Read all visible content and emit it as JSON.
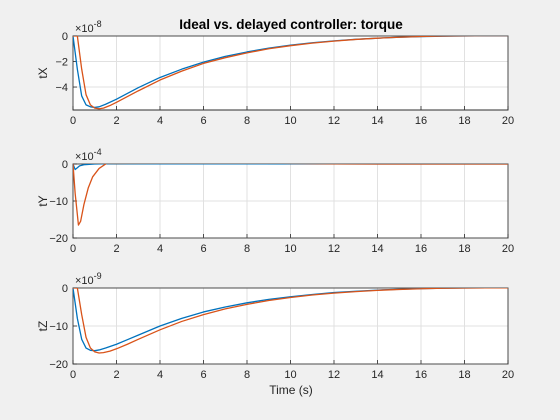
{
  "chart_data": {
    "type": "line",
    "title": "Ideal vs. delayed controller: torque",
    "xlabel": "Time (s)",
    "colors": {
      "ideal": "#0072BD",
      "delayed": "#D95319"
    },
    "subplots": [
      {
        "ylabel": "tX",
        "multiplier": "×10",
        "exponent": "-8",
        "xlim": [
          0,
          20
        ],
        "ylim": [
          -5.8,
          0
        ],
        "xticks": [
          0,
          2,
          4,
          6,
          8,
          10,
          12,
          14,
          16,
          18,
          20
        ],
        "yticks": [
          0,
          -2,
          -4
        ],
        "series": [
          {
            "color": "#0072BD",
            "x": [
              0,
              0.2,
              0.4,
              0.6,
              0.8,
              1.0,
              1.2,
              1.5,
              2,
              2.5,
              3,
              4,
              5,
              6,
              7,
              8,
              9,
              10,
              11,
              12,
              13,
              14,
              15,
              16,
              17,
              18,
              19,
              20
            ],
            "y": [
              0,
              -2.6,
              -4.7,
              -5.4,
              -5.55,
              -5.6,
              -5.55,
              -5.35,
              -4.95,
              -4.5,
              -4.05,
              -3.25,
              -2.6,
              -2.05,
              -1.6,
              -1.25,
              -0.95,
              -0.72,
              -0.53,
              -0.38,
              -0.26,
              -0.17,
              -0.1,
              -0.05,
              -0.02,
              0,
              0.02,
              0.02
            ]
          },
          {
            "color": "#D95319",
            "x": [
              0,
              0.2,
              0.4,
              0.6,
              0.8,
              1.0,
              1.2,
              1.4,
              1.7,
              2,
              2.5,
              3,
              4,
              5,
              6,
              7,
              8,
              9,
              10,
              11,
              12,
              13,
              14,
              15,
              16,
              17,
              18,
              19,
              20
            ],
            "y": [
              0,
              0,
              -2.6,
              -4.6,
              -5.4,
              -5.65,
              -5.7,
              -5.65,
              -5.45,
              -5.2,
              -4.75,
              -4.3,
              -3.45,
              -2.75,
              -2.15,
              -1.7,
              -1.32,
              -1.0,
              -0.76,
              -0.56,
              -0.4,
              -0.27,
              -0.17,
              -0.1,
              -0.04,
              0,
              0.02,
              0.03,
              0.03
            ]
          }
        ]
      },
      {
        "ylabel": "tY",
        "multiplier": "×10",
        "exponent": "-4",
        "xlim": [
          0,
          20
        ],
        "ylim": [
          -20,
          0
        ],
        "xticks": [
          0,
          2,
          4,
          6,
          8,
          10,
          12,
          14,
          16,
          18,
          20
        ],
        "yticks": [
          0,
          -10,
          -20
        ],
        "series": [
          {
            "color": "#0072BD",
            "x": [
              0,
              0.1,
              0.2,
              0.3,
              0.5,
              1,
              2,
              4,
              20
            ],
            "y": [
              0,
              -1.5,
              -1.0,
              -0.5,
              -0.2,
              0,
              0.1,
              0.05,
              0
            ]
          },
          {
            "color": "#D95319",
            "x": [
              0,
              0.1,
              0.25,
              0.35,
              0.5,
              0.7,
              0.9,
              1.2,
              1.6,
              2,
              3,
              4,
              6,
              8,
              10,
              12,
              14,
              16,
              18,
              20
            ],
            "y": [
              0,
              -8,
              -16.5,
              -15.5,
              -11,
              -6.5,
              -3.5,
              -1.2,
              0.4,
              1.0,
              1.2,
              1.0,
              0.6,
              0.3,
              0.15,
              0.05,
              0,
              0,
              0,
              0
            ]
          }
        ]
      },
      {
        "ylabel": "tZ",
        "multiplier": "×10",
        "exponent": "-9",
        "xlim": [
          0,
          20
        ],
        "ylim": [
          -20,
          0
        ],
        "xticks": [
          0,
          2,
          4,
          6,
          8,
          10,
          12,
          14,
          16,
          18,
          20
        ],
        "yticks": [
          0,
          -10,
          -20
        ],
        "series": [
          {
            "color": "#0072BD",
            "x": [
              0,
              0.2,
              0.4,
              0.6,
              0.8,
              1.0,
              1.2,
              1.5,
              2,
              2.5,
              3,
              4,
              5,
              6,
              7,
              8,
              9,
              10,
              11,
              12,
              13,
              14,
              15,
              16,
              17,
              18,
              19,
              20
            ],
            "y": [
              0,
              -8,
              -13.5,
              -15.8,
              -16.4,
              -16.5,
              -16.3,
              -15.8,
              -14.8,
              -13.6,
              -12.4,
              -10.0,
              -8.0,
              -6.3,
              -5.0,
              -3.9,
              -3.0,
              -2.3,
              -1.7,
              -1.2,
              -0.85,
              -0.55,
              -0.32,
              -0.15,
              -0.05,
              0,
              0.05,
              0.05
            ]
          },
          {
            "color": "#D95319",
            "x": [
              0,
              0.2,
              0.4,
              0.6,
              0.8,
              1.0,
              1.2,
              1.4,
              1.7,
              2,
              2.5,
              3,
              4,
              5,
              6,
              7,
              8,
              9,
              10,
              11,
              12,
              13,
              14,
              15,
              16,
              17,
              18,
              19,
              20
            ],
            "y": [
              0,
              0,
              -7,
              -13,
              -15.8,
              -16.8,
              -17.1,
              -17.0,
              -16.6,
              -16.0,
              -14.8,
              -13.5,
              -11.0,
              -8.8,
              -7.0,
              -5.5,
              -4.3,
              -3.3,
              -2.5,
              -1.85,
              -1.35,
              -0.95,
              -0.62,
              -0.38,
              -0.2,
              -0.07,
              0,
              0.05,
              0.05
            ]
          }
        ]
      }
    ]
  }
}
